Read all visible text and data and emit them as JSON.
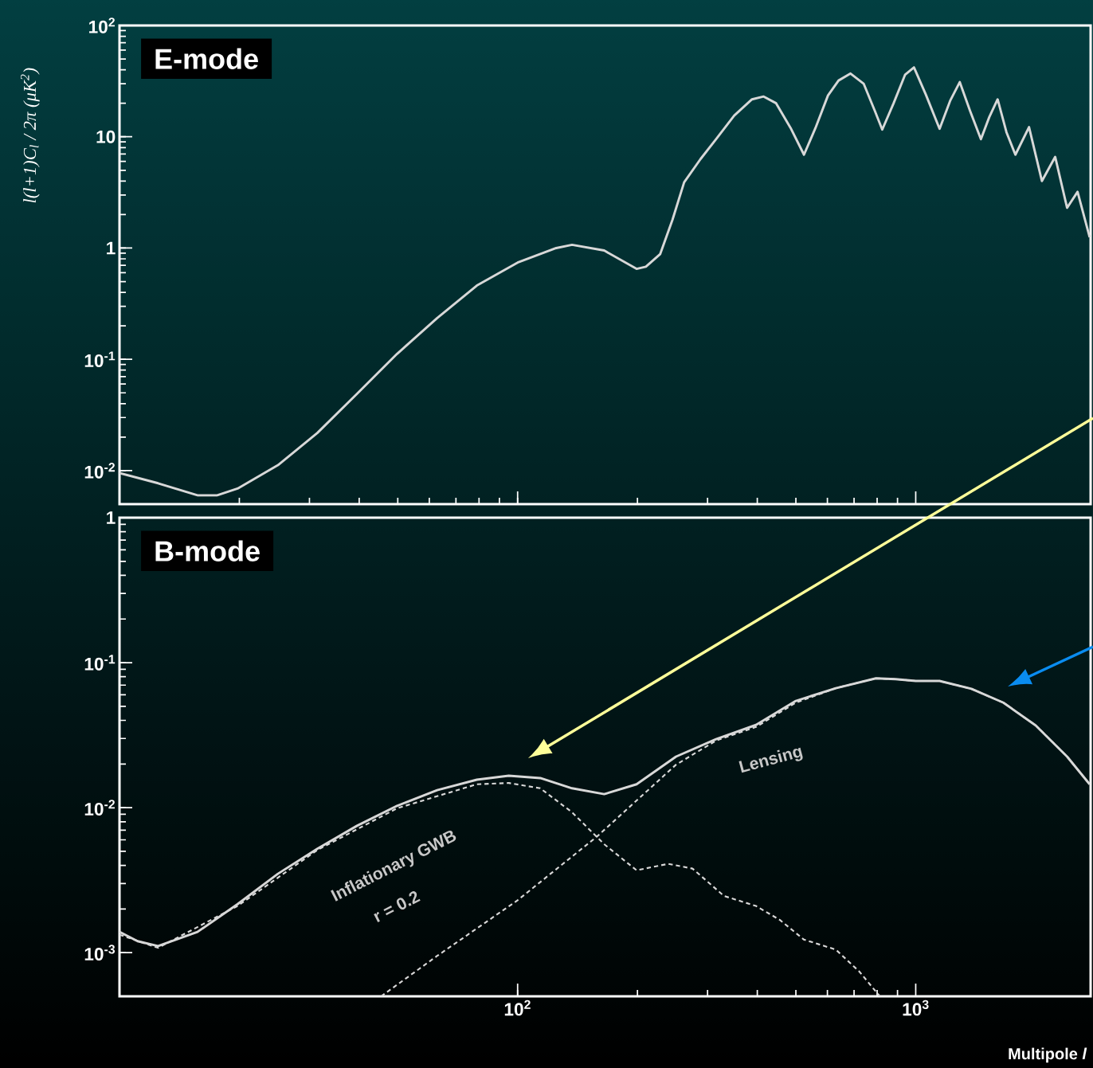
{
  "chart_data": [
    {
      "type": "line",
      "title": "E-mode",
      "ylabel": "l(l+1)C$_{l}$ / 2π  (μK$^{2}$)",
      "log": "xy",
      "xlim": [
        10,
        2750
      ],
      "ylim": [
        0.005,
        100
      ],
      "yticks": [
        {
          "value": 0.01,
          "label": "10$^{-2}$"
        },
        {
          "value": 0.1,
          "label": "10$^{-1}$"
        },
        1,
        10,
        {
          "value": 100,
          "label": "10$^{2}$"
        }
      ],
      "tick_labels": "y",
      "series": [
        {
          "color": "#d8d8d8",
          "line_style": "solid",
          "x": [
            10,
            12.5,
            15.7,
            17.6,
            19.8,
            25,
            31.4,
            39.5,
            49.8,
            62.8,
            79,
            100,
            125,
            137,
            165,
            199,
            210,
            228,
            245,
            262,
            288,
            315,
            350,
            388,
            415,
            446,
            485,
            524,
            560,
            602,
            640,
            686,
            740,
            790,
            824,
            880,
            940,
            990,
            1060,
            1148,
            1220,
            1290,
            1370,
            1458,
            1530,
            1606,
            1690,
            1780,
            1926,
            2075,
            2240,
            2400,
            2550,
            2735
          ],
          "values": [
            0.0095,
            0.0077,
            0.006,
            0.006,
            0.0069,
            0.0112,
            0.0218,
            0.049,
            0.112,
            0.235,
            0.46,
            0.74,
            1.0,
            1.07,
            0.95,
            0.65,
            0.68,
            0.88,
            1.8,
            3.9,
            6.3,
            9.5,
            15.5,
            21.7,
            23,
            20,
            12,
            6.9,
            12,
            23.5,
            32,
            37,
            30,
            17,
            11.6,
            20,
            36,
            42,
            24,
            11.8,
            21,
            31,
            17,
            9.5,
            15,
            21.7,
            11,
            6.9,
            12.2,
            4,
            6.6,
            2.3,
            3.2,
            1.25
          ]
        }
      ]
    },
    {
      "type": "line",
      "title": "B-mode",
      "xlabel": "Multipole *l*",
      "log": "xy",
      "xlim": [
        10,
        2750
      ],
      "ylim": [
        0.0005,
        1
      ],
      "xticks": [
        {
          "value": 100,
          "label": "10$^{2}$"
        },
        {
          "value": 1000,
          "label": "10$^{3}$"
        }
      ],
      "yticks": [
        {
          "value": 0.001,
          "label": "10$^{-3}$"
        },
        {
          "value": 0.01,
          "label": "10$^{-2}$"
        },
        {
          "value": 0.1,
          "label": "10$^{-1}$"
        },
        1
      ],
      "annotations": [
        "Inflationary GWB",
        "r = 0.2",
        "Lensing"
      ],
      "series": [
        {
          "color": "#d8d8d8",
          "line_style": "solid",
          "x": [
            10,
            11.1,
            12.5,
            15.7,
            19.8,
            25,
            31.4,
            39.5,
            49.8,
            62.8,
            79,
            95,
            114,
            137,
            165,
            199,
            250,
            315,
            397,
            500,
            630,
            794,
            890,
            1000,
            1148,
            1380,
            1660,
            2000,
            2400,
            2735
          ],
          "values": [
            0.00139,
            0.0012,
            0.00111,
            0.00139,
            0.00216,
            0.0035,
            0.0052,
            0.0075,
            0.0103,
            0.0132,
            0.0156,
            0.0166,
            0.016,
            0.0136,
            0.0124,
            0.0145,
            0.0225,
            0.0297,
            0.0372,
            0.0545,
            0.0667,
            0.078,
            0.077,
            0.0748,
            0.0748,
            0.066,
            0.053,
            0.037,
            0.0225,
            0.0145
          ]
        },
        {
          "color": "#d8d8d8",
          "line_style": "dashed",
          "x": [
            10,
            12.5,
            19.8,
            31.4,
            49.8,
            79,
            95,
            114,
            137,
            165,
            199,
            239,
            275,
            330,
            397,
            456,
            524,
            630,
            722,
            794,
            813
          ],
          "values": [
            0.00133,
            0.00108,
            0.0021,
            0.0051,
            0.0099,
            0.0145,
            0.0148,
            0.0136,
            0.0093,
            0.0056,
            0.0037,
            0.0041,
            0.0038,
            0.00246,
            0.0021,
            0.00168,
            0.00123,
            0.00105,
            0.00074,
            0.00054,
            0.0005
          ]
        },
        {
          "color": "#d8d8d8",
          "line_style": "dashed",
          "x": [
            45.4,
            62.8,
            100,
            158,
            250,
            315,
            397,
            500,
            630,
            794,
            890,
            1000,
            1148,
            1380,
            1660,
            2000,
            2400,
            2735
          ],
          "values": [
            0.0005,
            0.00095,
            0.0023,
            0.0063,
            0.0198,
            0.029,
            0.036,
            0.053,
            0.0667,
            0.078,
            0.077,
            0.0748,
            0.0748,
            0.066,
            0.053,
            0.037,
            0.0225,
            0.0145
          ]
        }
      ]
    }
  ]
}
